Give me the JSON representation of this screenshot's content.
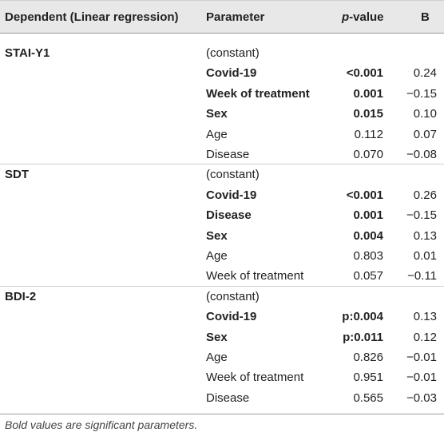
{
  "header": {
    "dependent": "Dependent (Linear regression)",
    "parameter": "Parameter",
    "pvalue_italic": "p",
    "pvalue_rest": "-value",
    "b": "B"
  },
  "rows": [
    {
      "dependent": "STAI-Y1",
      "parameter": "(constant)",
      "p": "",
      "b": "",
      "bold": false
    },
    {
      "dependent": "",
      "parameter": "Covid-19",
      "p": "<0.001",
      "b": "0.24",
      "bold": true
    },
    {
      "dependent": "",
      "parameter": "Week of treatment",
      "p": "0.001",
      "b": "−0.15",
      "bold": true
    },
    {
      "dependent": "",
      "parameter": "Sex",
      "p": "0.015",
      "b": "0.10",
      "bold": true
    },
    {
      "dependent": "",
      "parameter": "Age",
      "p": "0.112",
      "b": "0.07",
      "bold": false
    },
    {
      "dependent": "",
      "parameter": "Disease",
      "p": "0.070",
      "b": "−0.08",
      "bold": false
    },
    {
      "dependent": "SDT",
      "parameter": "(constant)",
      "p": "",
      "b": "",
      "bold": false
    },
    {
      "dependent": "",
      "parameter": "Covid-19",
      "p": "<0.001",
      "b": "0.26",
      "bold": true
    },
    {
      "dependent": "",
      "parameter": "Disease",
      "p": "0.001",
      "b": "−0.15",
      "bold": true
    },
    {
      "dependent": "",
      "parameter": "Sex",
      "p": "0.004",
      "b": "0.13",
      "bold": true
    },
    {
      "dependent": "",
      "parameter": "Age",
      "p": "0.803",
      "b": "0.01",
      "bold": false
    },
    {
      "dependent": "",
      "parameter": "Week of treatment",
      "p": "0.057",
      "b": "−0.11",
      "bold": false
    },
    {
      "dependent": "BDI-2",
      "parameter": "(constant)",
      "p": "",
      "b": "",
      "bold": false
    },
    {
      "dependent": "",
      "parameter": "Covid-19",
      "p": "p:0.004",
      "b": "0.13",
      "bold": true
    },
    {
      "dependent": "",
      "parameter": "Sex",
      "p": "p:0.011",
      "b": "0.12",
      "bold": true
    },
    {
      "dependent": "",
      "parameter": "Age",
      "p": "0.826",
      "b": "−0.01",
      "bold": false
    },
    {
      "dependent": "",
      "parameter": "Week of treatment",
      "p": "0.951",
      "b": "−0.01",
      "bold": false
    },
    {
      "dependent": "",
      "parameter": "Disease",
      "p": "0.565",
      "b": "−0.03",
      "bold": false
    }
  ],
  "footnote": "Bold values are significant parameters."
}
